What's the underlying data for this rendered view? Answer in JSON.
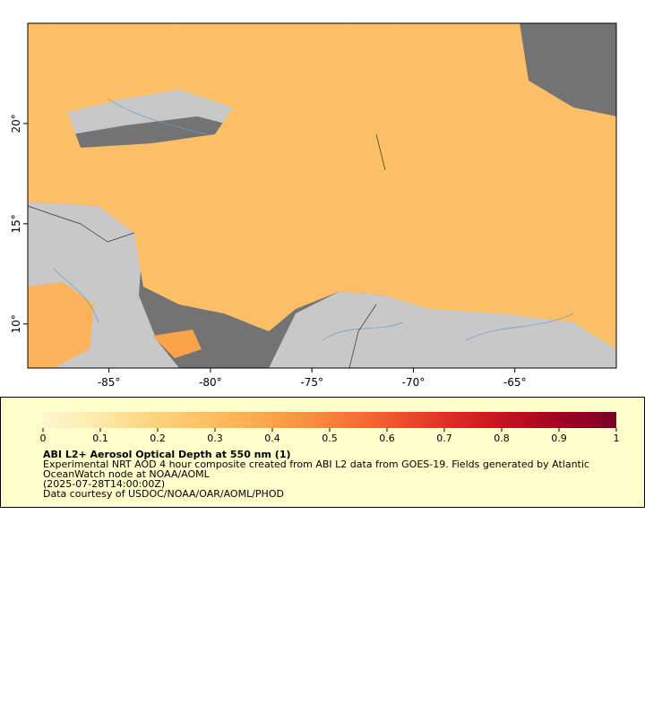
{
  "map": {
    "xlim": [
      -89,
      -60
    ],
    "ylim": [
      7.8,
      25
    ],
    "xticks": [
      {
        "value": -85,
        "label": "-85°"
      },
      {
        "value": -80,
        "label": "-80°"
      },
      {
        "value": -75,
        "label": "-75°"
      },
      {
        "value": -70,
        "label": "-70°"
      },
      {
        "value": -65,
        "label": "-65°"
      }
    ],
    "yticks": [
      {
        "value": 10,
        "label": "10°"
      },
      {
        "value": 15,
        "label": "15°"
      },
      {
        "value": 20,
        "label": "20°"
      }
    ]
  },
  "legend": {
    "colorbar": {
      "range": [
        0,
        1
      ],
      "ticks": [
        0,
        0.1,
        0.2,
        0.3,
        0.4,
        0.5,
        0.6,
        0.7,
        0.8,
        0.9,
        1
      ],
      "colors": [
        "#fff6d0",
        "#fee9a8",
        "#fdd27c",
        "#fdbd5e",
        "#fba349",
        "#f7833a",
        "#ef5a2e",
        "#df3125",
        "#c5141f",
        "#a00424",
        "#7a0028"
      ]
    },
    "title": "ABI L2+ Aerosol Optical Depth at 550 nm (1)",
    "lines": [
      "Experimental NRT AOD 4 hour composite created from ABI L2 data from GOES-19. Fields generated by Atlantic",
      "OceanWatch node at NOAA/AOML",
      "(2025-07-28T14:00:00Z)",
      "Data courtesy of USDOC/NOAA/OAR/AOML/PHOD"
    ]
  }
}
